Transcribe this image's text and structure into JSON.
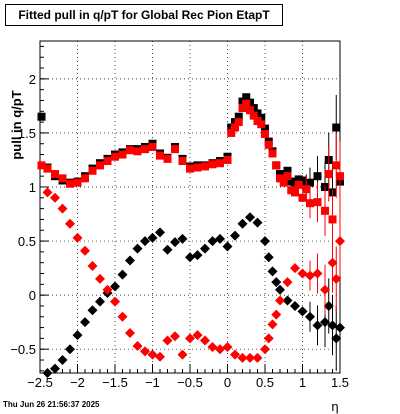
{
  "chart_data": {
    "type": "scatter",
    "title": "Fitted pull in q/pT for Global Rec Pion EtapT",
    "xlabel": "η",
    "ylabel": "pull in q/pT",
    "xlim": [
      -2.5,
      1.5
    ],
    "ylim": [
      -0.72,
      2.35
    ],
    "grid": true,
    "x_ticks": [
      -2.5,
      -2,
      -1.5,
      -1,
      -0.5,
      0,
      0.5,
      1,
      1.5
    ],
    "x_tick_labels": [
      "−2.5",
      "−2",
      "−1.5",
      "−1",
      "−0.5",
      "0",
      "0.5",
      "1",
      "1.5"
    ],
    "y_ticks": [
      -0.5,
      0,
      0.5,
      1,
      1.5,
      2
    ],
    "y_tick_labels": [
      "−0.5",
      "0",
      "0.5",
      "1",
      "1.5",
      "2"
    ],
    "series": [
      {
        "color": "#000000",
        "marker": "square",
        "points": [
          [
            -2.48,
            1.65
          ],
          [
            -2.4,
            1.18
          ],
          [
            -2.3,
            1.1
          ],
          [
            -2.2,
            1.06
          ],
          [
            -2.1,
            1.04
          ],
          [
            -2.0,
            1.05
          ],
          [
            -1.9,
            1.1
          ],
          [
            -1.8,
            1.17
          ],
          [
            -1.7,
            1.22
          ],
          [
            -1.6,
            1.26
          ],
          [
            -1.5,
            1.3
          ],
          [
            -1.4,
            1.32
          ],
          [
            -1.3,
            1.35
          ],
          [
            -1.2,
            1.35
          ],
          [
            -1.1,
            1.37
          ],
          [
            -1.0,
            1.4
          ],
          [
            -0.9,
            1.31
          ],
          [
            -0.8,
            1.27
          ],
          [
            -0.7,
            1.37
          ],
          [
            -0.6,
            1.26
          ],
          [
            -0.5,
            1.19
          ],
          [
            -0.4,
            1.2
          ],
          [
            -0.3,
            1.2
          ],
          [
            -0.2,
            1.22
          ],
          [
            -0.1,
            1.24
          ],
          [
            0.0,
            1.28
          ],
          [
            0.05,
            1.55
          ],
          [
            0.1,
            1.6
          ],
          [
            0.15,
            1.65
          ],
          [
            0.2,
            1.79
          ],
          [
            0.25,
            1.83
          ],
          [
            0.3,
            1.78
          ],
          [
            0.35,
            1.73
          ],
          [
            0.4,
            1.68
          ],
          [
            0.45,
            1.64
          ],
          [
            0.5,
            1.54
          ],
          [
            0.55,
            1.42
          ],
          [
            0.6,
            1.33
          ],
          [
            0.65,
            1.2
          ],
          [
            0.7,
            1.12
          ],
          [
            0.75,
            1.08
          ],
          [
            0.8,
            1.15
          ],
          [
            0.85,
            1.05
          ],
          [
            0.9,
            1.02
          ],
          [
            0.95,
            1.07
          ],
          [
            1.0,
            1.06
          ],
          [
            1.05,
            1.0
          ],
          [
            1.1,
            1.04
          ],
          [
            1.2,
            1.1
          ],
          [
            1.3,
            1.0
          ],
          [
            1.35,
            1.25
          ],
          [
            1.4,
            0.95
          ],
          [
            1.45,
            1.55
          ],
          [
            1.5,
            1.05
          ]
        ]
      },
      {
        "color": "#ff0000",
        "marker": "square",
        "points": [
          [
            -2.48,
            1.2
          ],
          [
            -2.4,
            1.17
          ],
          [
            -2.3,
            1.12
          ],
          [
            -2.2,
            1.08
          ],
          [
            -2.1,
            1.03
          ],
          [
            -2.0,
            1.04
          ],
          [
            -1.9,
            1.08
          ],
          [
            -1.8,
            1.15
          ],
          [
            -1.7,
            1.2
          ],
          [
            -1.6,
            1.24
          ],
          [
            -1.5,
            1.28
          ],
          [
            -1.4,
            1.3
          ],
          [
            -1.3,
            1.34
          ],
          [
            -1.2,
            1.33
          ],
          [
            -1.1,
            1.35
          ],
          [
            -1.0,
            1.37
          ],
          [
            -0.9,
            1.29
          ],
          [
            -0.8,
            1.26
          ],
          [
            -0.7,
            1.35
          ],
          [
            -0.6,
            1.24
          ],
          [
            -0.5,
            1.17
          ],
          [
            -0.4,
            1.18
          ],
          [
            -0.3,
            1.19
          ],
          [
            -0.2,
            1.21
          ],
          [
            -0.1,
            1.22
          ],
          [
            0.0,
            1.25
          ],
          [
            0.05,
            1.5
          ],
          [
            0.1,
            1.55
          ],
          [
            0.15,
            1.6
          ],
          [
            0.2,
            1.73
          ],
          [
            0.25,
            1.77
          ],
          [
            0.3,
            1.71
          ],
          [
            0.35,
            1.66
          ],
          [
            0.4,
            1.61
          ],
          [
            0.45,
            1.58
          ],
          [
            0.5,
            1.49
          ],
          [
            0.55,
            1.39
          ],
          [
            0.6,
            1.31
          ],
          [
            0.65,
            1.2
          ],
          [
            0.7,
            1.08
          ],
          [
            0.75,
            1.04
          ],
          [
            0.8,
            1.1
          ],
          [
            0.85,
            0.97
          ],
          [
            0.9,
            0.95
          ],
          [
            0.95,
            1.02
          ],
          [
            1.0,
            0.9
          ],
          [
            1.05,
            0.98
          ],
          [
            1.1,
            0.85
          ],
          [
            1.2,
            0.86
          ],
          [
            1.3,
            0.78
          ],
          [
            1.35,
            1.12
          ],
          [
            1.4,
            0.7
          ],
          [
            1.45,
            1.2
          ],
          [
            1.5,
            1.1
          ]
        ]
      },
      {
        "color": "#000000",
        "marker": "diamond",
        "points": [
          [
            -2.4,
            -0.72
          ],
          [
            -2.3,
            -0.68
          ],
          [
            -2.2,
            -0.6
          ],
          [
            -2.1,
            -0.5
          ],
          [
            -2.0,
            -0.37
          ],
          [
            -1.9,
            -0.25
          ],
          [
            -1.8,
            -0.14
          ],
          [
            -1.7,
            -0.06
          ],
          [
            -1.6,
            0.02
          ],
          [
            -1.5,
            0.08
          ],
          [
            -1.4,
            0.19
          ],
          [
            -1.3,
            0.32
          ],
          [
            -1.2,
            0.43
          ],
          [
            -1.1,
            0.5
          ],
          [
            -1.0,
            0.53
          ],
          [
            -0.9,
            0.58
          ],
          [
            -0.8,
            0.42
          ],
          [
            -0.7,
            0.49
          ],
          [
            -0.6,
            0.52
          ],
          [
            -0.5,
            0.35
          ],
          [
            -0.4,
            0.37
          ],
          [
            -0.3,
            0.43
          ],
          [
            -0.2,
            0.5
          ],
          [
            -0.1,
            0.52
          ],
          [
            0.0,
            0.45
          ],
          [
            0.1,
            0.55
          ],
          [
            0.2,
            0.66
          ],
          [
            0.3,
            0.72
          ],
          [
            0.4,
            0.67
          ],
          [
            0.5,
            0.5
          ],
          [
            0.55,
            0.35
          ],
          [
            0.6,
            0.22
          ],
          [
            0.65,
            0.12
          ],
          [
            0.7,
            0.05
          ],
          [
            0.8,
            -0.05
          ],
          [
            0.9,
            -0.1
          ],
          [
            1.0,
            -0.15
          ],
          [
            1.1,
            -0.2
          ],
          [
            1.2,
            -0.28
          ],
          [
            1.3,
            -0.25
          ],
          [
            1.35,
            -0.1
          ],
          [
            1.4,
            -0.28
          ],
          [
            1.45,
            -0.4
          ],
          [
            1.5,
            -0.3
          ]
        ]
      },
      {
        "color": "#ff0000",
        "marker": "diamond",
        "points": [
          [
            -2.4,
            0.95
          ],
          [
            -2.3,
            0.9
          ],
          [
            -2.2,
            0.8
          ],
          [
            -2.1,
            0.66
          ],
          [
            -2.0,
            0.53
          ],
          [
            -1.9,
            0.41
          ],
          [
            -1.8,
            0.27
          ],
          [
            -1.7,
            0.15
          ],
          [
            -1.6,
            0.05
          ],
          [
            -1.5,
            -0.06
          ],
          [
            -1.4,
            -0.2
          ],
          [
            -1.3,
            -0.35
          ],
          [
            -1.2,
            -0.47
          ],
          [
            -1.1,
            -0.52
          ],
          [
            -1.0,
            -0.55
          ],
          [
            -0.9,
            -0.57
          ],
          [
            -0.8,
            -0.42
          ],
          [
            -0.7,
            -0.38
          ],
          [
            -0.6,
            -0.55
          ],
          [
            -0.5,
            -0.4
          ],
          [
            -0.4,
            -0.37
          ],
          [
            -0.3,
            -0.42
          ],
          [
            -0.2,
            -0.48
          ],
          [
            -0.1,
            -0.5
          ],
          [
            0.0,
            -0.48
          ],
          [
            0.1,
            -0.55
          ],
          [
            0.2,
            -0.58
          ],
          [
            0.3,
            -0.58
          ],
          [
            0.4,
            -0.58
          ],
          [
            0.5,
            -0.5
          ],
          [
            0.55,
            -0.4
          ],
          [
            0.6,
            -0.27
          ],
          [
            0.65,
            -0.18
          ],
          [
            0.7,
            -0.05
          ],
          [
            0.8,
            0.12
          ],
          [
            0.9,
            0.25
          ],
          [
            1.0,
            0.2
          ],
          [
            1.1,
            0.18
          ],
          [
            1.2,
            0.2
          ],
          [
            1.3,
            0.05
          ],
          [
            1.4,
            0.3
          ],
          [
            1.45,
            0.15
          ],
          [
            1.5,
            0.5
          ]
        ]
      }
    ]
  },
  "footer": {
    "date": "Thu Jun 26 21:56:37 2025"
  }
}
